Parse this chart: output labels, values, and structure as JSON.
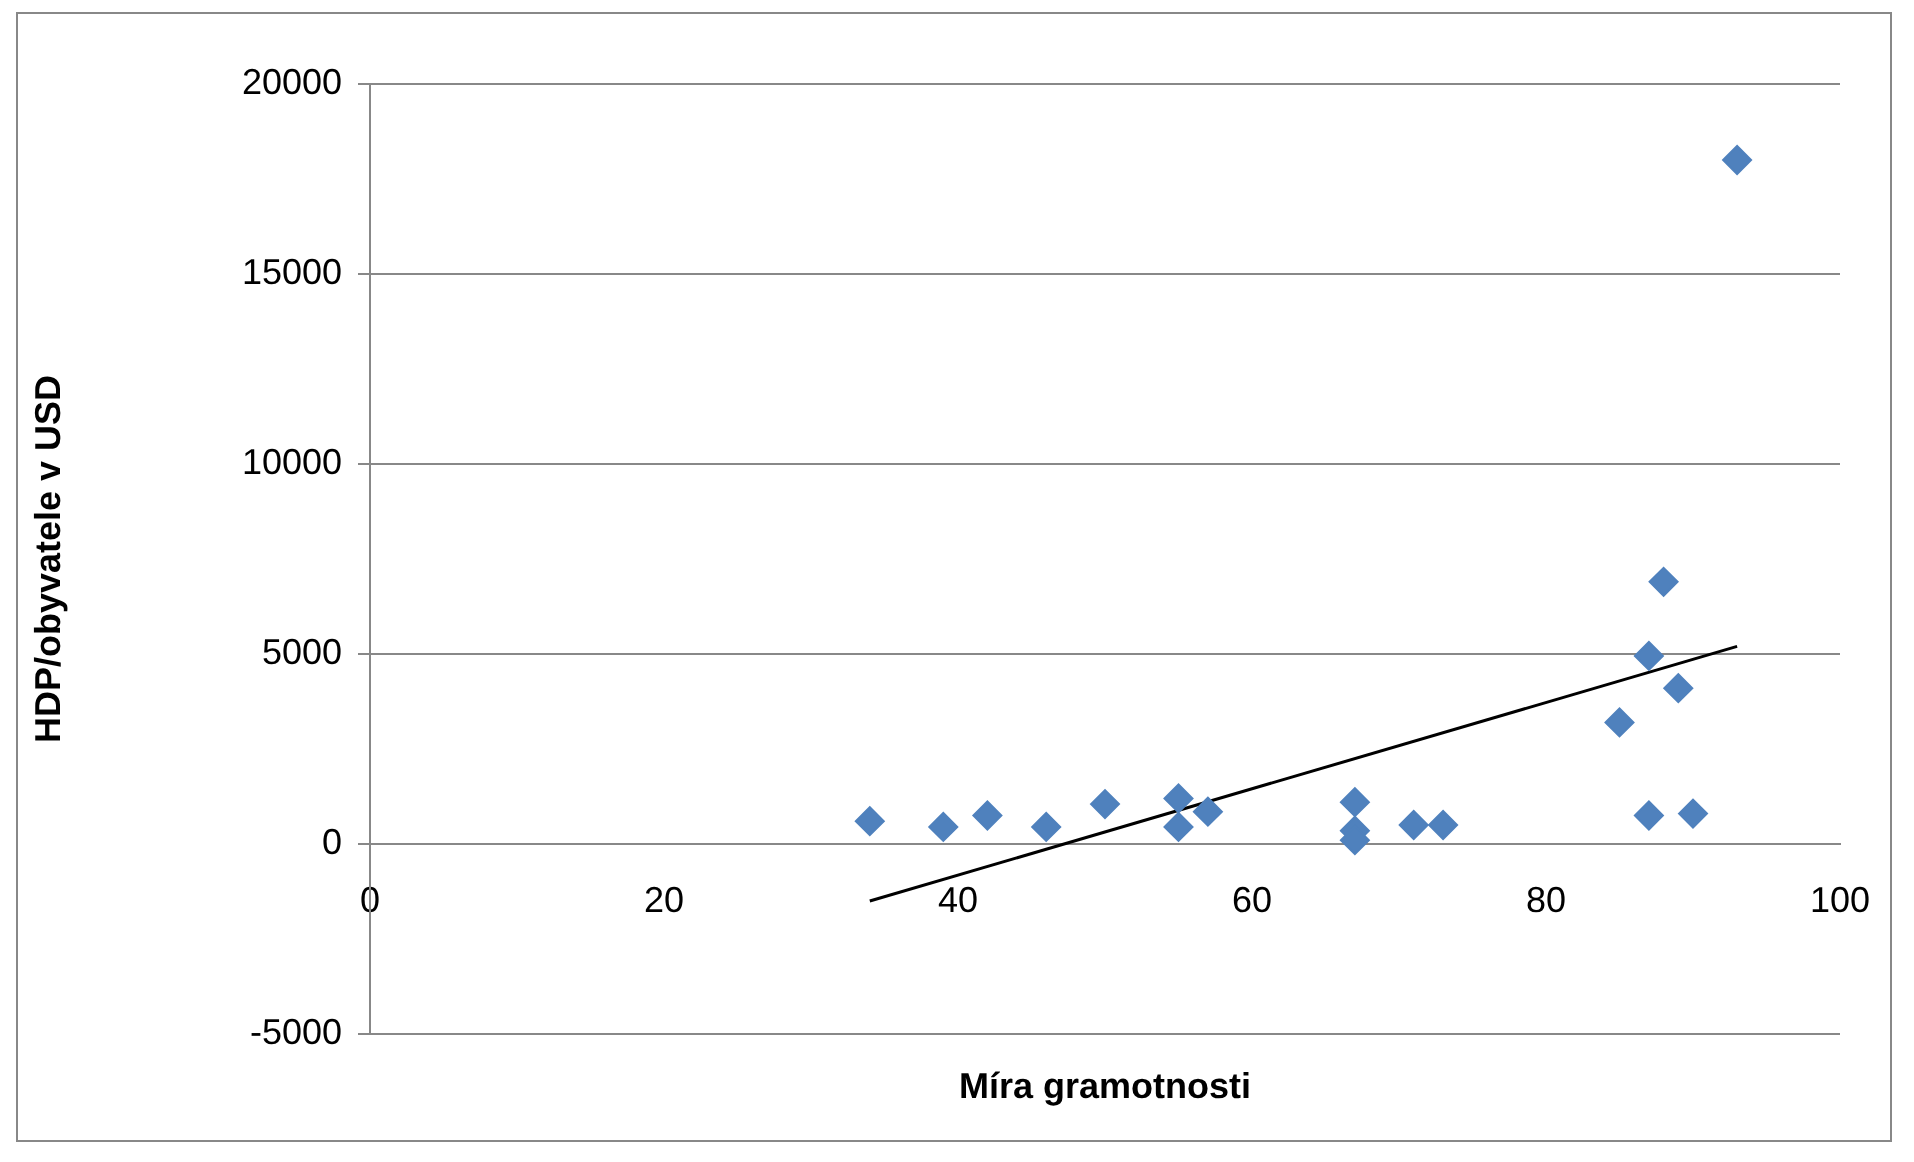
{
  "chart_data": {
    "type": "scatter",
    "xlabel": "Míra gramotnosti",
    "ylabel": "HDP/obyvatele v USD",
    "xlim": [
      0,
      100
    ],
    "xticks": [
      0,
      20,
      40,
      60,
      80,
      100
    ],
    "ylim": [
      -5000,
      20000
    ],
    "yticks": [
      -5000,
      0,
      5000,
      10000,
      15000,
      20000
    ],
    "grid": "y",
    "legend": false,
    "marker": "diamond",
    "series": [
      {
        "type": "scatter",
        "color": "#4f81bd",
        "x": [
          34,
          39,
          42,
          46,
          50,
          55,
          55,
          57,
          67,
          67,
          67,
          71,
          73,
          85,
          87,
          87,
          88,
          89,
          90,
          93
        ],
        "values": [
          600,
          450,
          750,
          450,
          1050,
          1200,
          450,
          850,
          1100,
          350,
          100,
          500,
          500,
          3200,
          4950,
          750,
          6900,
          4100,
          800,
          18000
        ]
      },
      {
        "type": "line",
        "marker": "none",
        "color": "#000000",
        "x": [
          34,
          93
        ],
        "values": [
          -1500,
          5200
        ]
      }
    ]
  }
}
